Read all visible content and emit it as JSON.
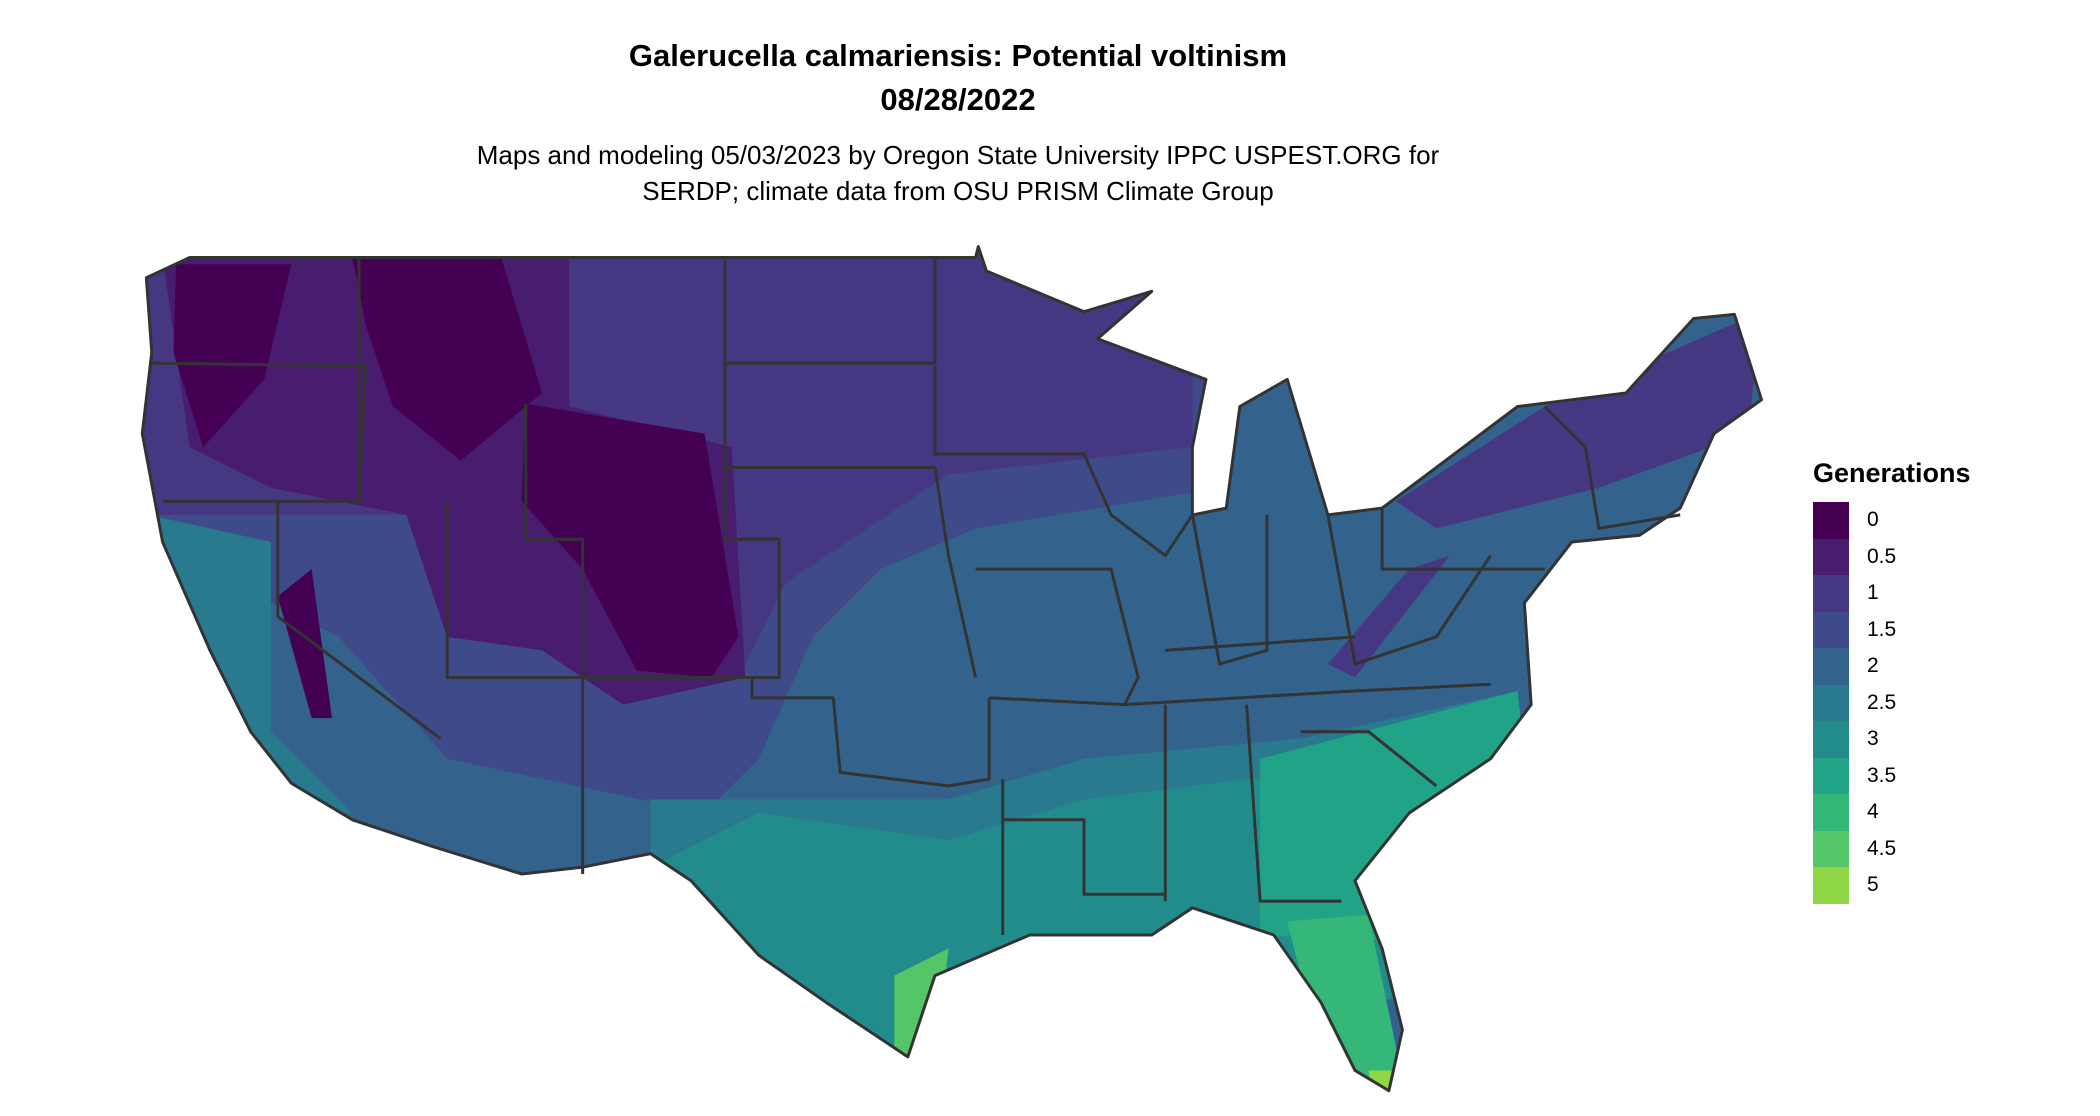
{
  "title": "Galerucella calmariensis: Potential voltinism",
  "date": "08/28/2022",
  "subtitle_line1": "Maps and modeling 05/03/2023 by Oregon State University IPPC USPEST.ORG for",
  "subtitle_line2": "SERDP; climate data from OSU PRISM Climate Group",
  "legend": {
    "title": "Generations",
    "items": [
      {
        "label": "0",
        "color": "#440154"
      },
      {
        "label": "0.5",
        "color": "#481c6e"
      },
      {
        "label": "1",
        "color": "#453781"
      },
      {
        "label": "1.5",
        "color": "#3f4a8a"
      },
      {
        "label": "2",
        "color": "#33638d"
      },
      {
        "label": "2.5",
        "color": "#297a8e"
      },
      {
        "label": "3",
        "color": "#228c8d"
      },
      {
        "label": "3.5",
        "color": "#20a386"
      },
      {
        "label": "4",
        "color": "#35b779"
      },
      {
        "label": "4.5",
        "color": "#55c667"
      },
      {
        "label": "5",
        "color": "#8fd744"
      }
    ]
  },
  "map": {
    "region": "Contiguous United States",
    "border_color": "#333333"
  }
}
